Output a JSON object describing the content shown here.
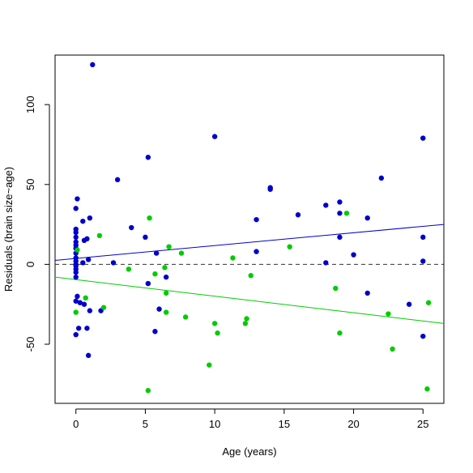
{
  "chart_data": {
    "type": "scatter",
    "xlabel": "Age (years)",
    "ylabel": "Residuals (brain size~age)",
    "xlim": [
      -1.5,
      26.5
    ],
    "ylim": [
      -87,
      131
    ],
    "x_ticks": [
      0,
      5,
      10,
      15,
      20,
      25
    ],
    "y_ticks": [
      -50,
      0,
      50,
      100
    ],
    "grid": false,
    "series": [
      {
        "color": "#0000cc",
        "points": [
          [
            1.2,
            125
          ],
          [
            0,
            22
          ],
          [
            0,
            20
          ],
          [
            0,
            17
          ],
          [
            0,
            14
          ],
          [
            0,
            12
          ],
          [
            0,
            10
          ],
          [
            0,
            7
          ],
          [
            0,
            4
          ],
          [
            0,
            2
          ],
          [
            0,
            0
          ],
          [
            0,
            -1
          ],
          [
            0,
            -3
          ],
          [
            0,
            -5
          ],
          [
            0,
            -8
          ],
          [
            0.1,
            41
          ],
          [
            0,
            35
          ],
          [
            0.1,
            -20
          ],
          [
            0,
            -23
          ],
          [
            0.2,
            -40
          ],
          [
            0,
            -44
          ],
          [
            0.3,
            -24
          ],
          [
            0.6,
            -25
          ],
          [
            0.5,
            27
          ],
          [
            0.6,
            15
          ],
          [
            0.8,
            16
          ],
          [
            0.5,
            1
          ],
          [
            0.8,
            -40
          ],
          [
            0.9,
            3
          ],
          [
            1.0,
            -29
          ],
          [
            1.0,
            29
          ],
          [
            0.9,
            -57
          ],
          [
            1.8,
            -29
          ],
          [
            2.7,
            1
          ],
          [
            3.0,
            53
          ],
          [
            4.0,
            23
          ],
          [
            5.0,
            17
          ],
          [
            5.2,
            67
          ],
          [
            5.2,
            -12
          ],
          [
            5.8,
            7
          ],
          [
            6.0,
            -28
          ],
          [
            5.7,
            -42
          ],
          [
            6.5,
            -8
          ],
          [
            10.0,
            80
          ],
          [
            13.0,
            28
          ],
          [
            13.0,
            8
          ],
          [
            14.0,
            48
          ],
          [
            14.0,
            47
          ],
          [
            16.0,
            31
          ],
          [
            18.0,
            37
          ],
          [
            18.0,
            1
          ],
          [
            19.0,
            39
          ],
          [
            19.0,
            32
          ],
          [
            19.0,
            17
          ],
          [
            20.0,
            6
          ],
          [
            21.0,
            29
          ],
          [
            21.0,
            -18
          ],
          [
            22.0,
            54
          ],
          [
            24.0,
            -25
          ],
          [
            25.0,
            79
          ],
          [
            25.0,
            17
          ],
          [
            25.0,
            2
          ],
          [
            25.0,
            -45
          ]
        ]
      },
      {
        "color": "#00cc00",
        "points": [
          [
            0,
            -30
          ],
          [
            0.1,
            9
          ],
          [
            0.7,
            -21
          ],
          [
            1.7,
            18
          ],
          [
            2.0,
            -27
          ],
          [
            3.8,
            -3
          ],
          [
            5.3,
            29
          ],
          [
            5.2,
            -79
          ],
          [
            5.7,
            -6
          ],
          [
            6.4,
            -2
          ],
          [
            6.5,
            -30
          ],
          [
            6.5,
            -18
          ],
          [
            6.7,
            11
          ],
          [
            7.6,
            7
          ],
          [
            7.9,
            -33
          ],
          [
            9.6,
            -63
          ],
          [
            10.0,
            -37
          ],
          [
            10.2,
            -43
          ],
          [
            11.3,
            4
          ],
          [
            12.3,
            -34
          ],
          [
            12.2,
            -37
          ],
          [
            12.6,
            -7
          ],
          [
            15.4,
            11
          ],
          [
            18.7,
            -15
          ],
          [
            19.0,
            -43
          ],
          [
            19.5,
            32
          ],
          [
            22.5,
            -31
          ],
          [
            22.8,
            -53
          ],
          [
            25.3,
            -78
          ],
          [
            25.4,
            -24
          ]
        ]
      }
    ],
    "lines": [
      {
        "kind": "fit",
        "color": "#0000cc",
        "x": [
          -1.5,
          26.5
        ],
        "y": [
          2.5,
          25
        ]
      },
      {
        "kind": "fit",
        "color": "#00cc00",
        "x": [
          -1.5,
          26.5
        ],
        "y": [
          -8,
          -37
        ]
      },
      {
        "kind": "reference",
        "color": "#333333",
        "dashed": true,
        "x": [
          -1.5,
          26.5
        ],
        "y": [
          0,
          0
        ]
      }
    ]
  }
}
